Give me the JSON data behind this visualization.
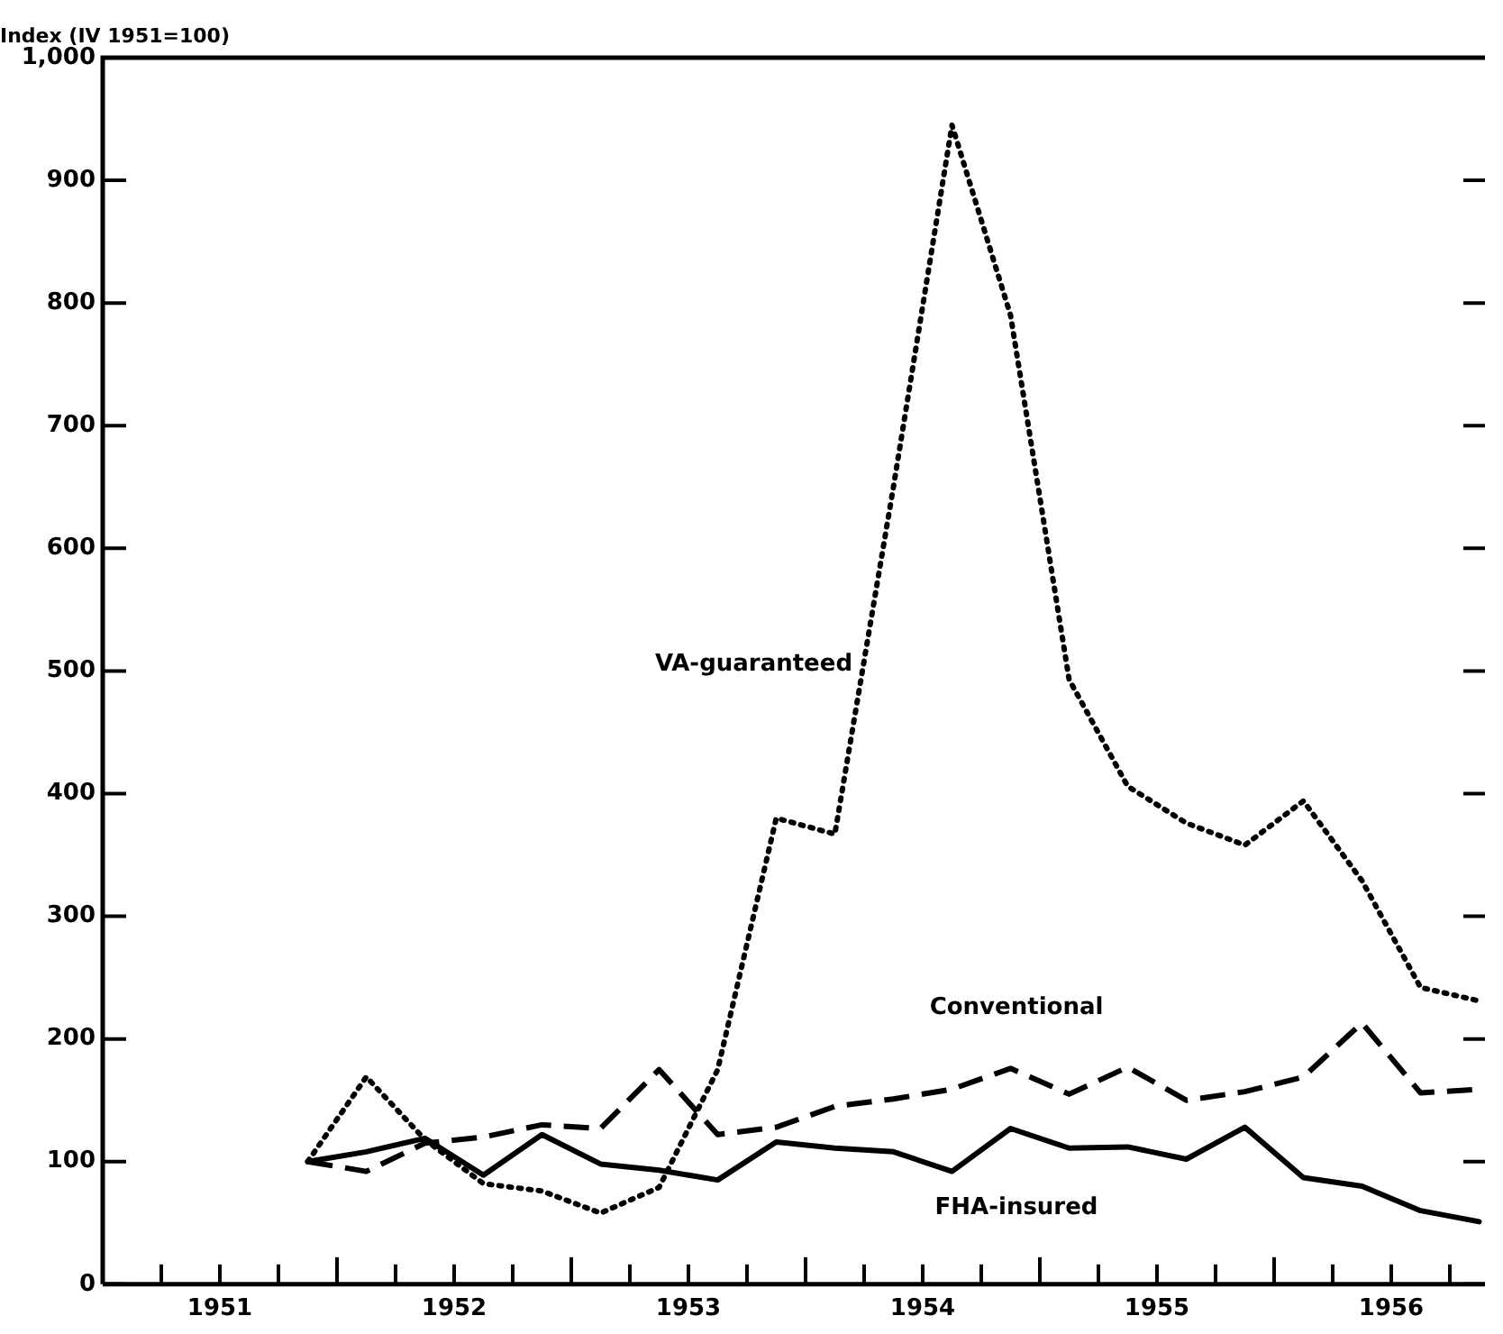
{
  "chart_data": {
    "type": "line",
    "ylabel": "Index (IV 1951=100)",
    "x": [
      1951.875,
      1952.125,
      1952.375,
      1952.625,
      1952.875,
      1953.125,
      1953.375,
      1953.625,
      1953.875,
      1954.125,
      1954.375,
      1954.625,
      1954.875,
      1955.125,
      1955.375,
      1955.625,
      1955.875,
      1956.125,
      1956.375,
      1956.625,
      1956.875
    ],
    "series": [
      {
        "name": "VA-guaranteed",
        "color": "#000000",
        "line_style": "dotted",
        "values": [
          100,
          169,
          118,
          82,
          76,
          58,
          79,
          175,
          380,
          367,
          650,
          945,
          790,
          493,
          406,
          376,
          358,
          394,
          329,
          242,
          231
        ]
      },
      {
        "name": "Conventional",
        "color": "#000000",
        "line_style": "dashed",
        "values": [
          100,
          92,
          115,
          120,
          130,
          127,
          175,
          122,
          128,
          145,
          151,
          159,
          176,
          155,
          177,
          150,
          157,
          169,
          213,
          156,
          159
        ]
      },
      {
        "name": "FHA-insured",
        "color": "#000000",
        "line_style": "solid",
        "values": [
          100,
          108,
          119,
          89,
          122,
          98,
          93,
          85,
          116,
          111,
          108,
          92,
          127,
          111,
          112,
          102,
          128,
          87,
          80,
          60,
          51
        ]
      }
    ],
    "xlim": [
      1951,
      1956.9
    ],
    "xticks": [
      {
        "value": 1951.25,
        "label": null
      },
      {
        "value": 1951.5,
        "label": "1951"
      },
      {
        "value": 1951.75,
        "label": null
      },
      {
        "value": 1952,
        "label": null
      },
      {
        "value": 1952.25,
        "label": null
      },
      {
        "value": 1952.5,
        "label": "1952"
      },
      {
        "value": 1952.75,
        "label": null
      },
      {
        "value": 1953,
        "label": null
      },
      {
        "value": 1953.25,
        "label": null
      },
      {
        "value": 1953.5,
        "label": "1953"
      },
      {
        "value": 1953.75,
        "label": null
      },
      {
        "value": 1954,
        "label": null
      },
      {
        "value": 1954.25,
        "label": null
      },
      {
        "value": 1954.5,
        "label": "1954"
      },
      {
        "value": 1954.75,
        "label": null
      },
      {
        "value": 1955,
        "label": null
      },
      {
        "value": 1955.25,
        "label": null
      },
      {
        "value": 1955.5,
        "label": "1955"
      },
      {
        "value": 1955.75,
        "label": null
      },
      {
        "value": 1956,
        "label": null
      },
      {
        "value": 1956.25,
        "label": null
      },
      {
        "value": 1956.5,
        "label": "1956"
      },
      {
        "value": 1956.75,
        "label": null
      }
    ],
    "ylim": [
      0,
      1000
    ],
    "yticks": [
      0,
      100,
      200,
      300,
      400,
      500,
      600,
      700,
      800,
      {
        "value": 900,
        "label": "900"
      },
      {
        "value": 1000,
        "label": "1,000"
      }
    ],
    "grid": false,
    "legend": false,
    "marker": "none"
  }
}
